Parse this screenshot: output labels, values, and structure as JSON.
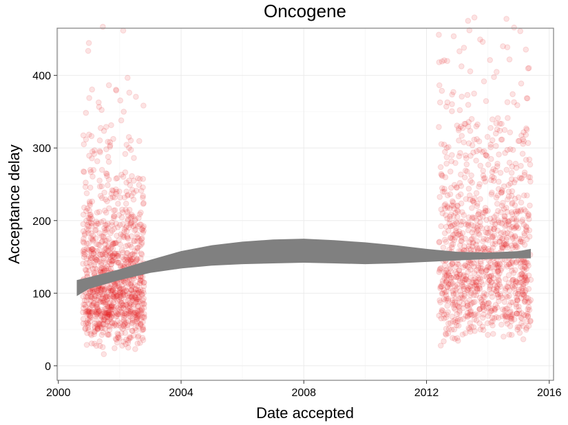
{
  "chart_data": {
    "type": "scatter",
    "title": "Oncogene",
    "xlabel": "Date accepted",
    "ylabel": "Acceptance delay",
    "x_axis_type": "date (year)",
    "xlim": [
      1999.96,
      2016.14
    ],
    "ylim": [
      -20,
      465
    ],
    "x_ticks": [
      2000,
      2004,
      2008,
      2012,
      2016
    ],
    "x_tick_labels": [
      "2000",
      "2004",
      "2008",
      "2012",
      "2016"
    ],
    "y_ticks": [
      0,
      100,
      200,
      300,
      400
    ],
    "y_tick_labels": [
      "0",
      "100",
      "200",
      "300",
      "400"
    ],
    "grid": true,
    "legend": "none",
    "point_color": "#e41a1c",
    "point_alpha": 0.12,
    "ribbon_color": "#808080",
    "point_clusters": [
      {
        "x_range": [
          2000.8,
          2002.8
        ],
        "y_median": 118,
        "y_spread": "0–465",
        "approx_points": 1050
      },
      {
        "x_range": [
          2012.4,
          2015.4
        ],
        "y_median": 150,
        "y_spread": "0–465",
        "approx_points": 1100
      }
    ],
    "smooth_band": [
      {
        "x": 2000.6,
        "lower": 96,
        "upper": 118
      },
      {
        "x": 2001.0,
        "lower": 106,
        "upper": 122
      },
      {
        "x": 2002.0,
        "lower": 118,
        "upper": 133
      },
      {
        "x": 2003.0,
        "lower": 128,
        "upper": 146
      },
      {
        "x": 2004.0,
        "lower": 134,
        "upper": 158
      },
      {
        "x": 2005.0,
        "lower": 138,
        "upper": 166
      },
      {
        "x": 2006.0,
        "lower": 140,
        "upper": 171
      },
      {
        "x": 2007.0,
        "lower": 141,
        "upper": 174
      },
      {
        "x": 2008.0,
        "lower": 142,
        "upper": 175
      },
      {
        "x": 2009.0,
        "lower": 141,
        "upper": 173
      },
      {
        "x": 2010.0,
        "lower": 140,
        "upper": 170
      },
      {
        "x": 2011.0,
        "lower": 141,
        "upper": 166
      },
      {
        "x": 2012.0,
        "lower": 143,
        "upper": 161
      },
      {
        "x": 2013.0,
        "lower": 145,
        "upper": 157
      },
      {
        "x": 2014.0,
        "lower": 147,
        "upper": 156
      },
      {
        "x": 2015.0,
        "lower": 148,
        "upper": 158
      },
      {
        "x": 2015.4,
        "lower": 148,
        "upper": 161
      }
    ]
  }
}
